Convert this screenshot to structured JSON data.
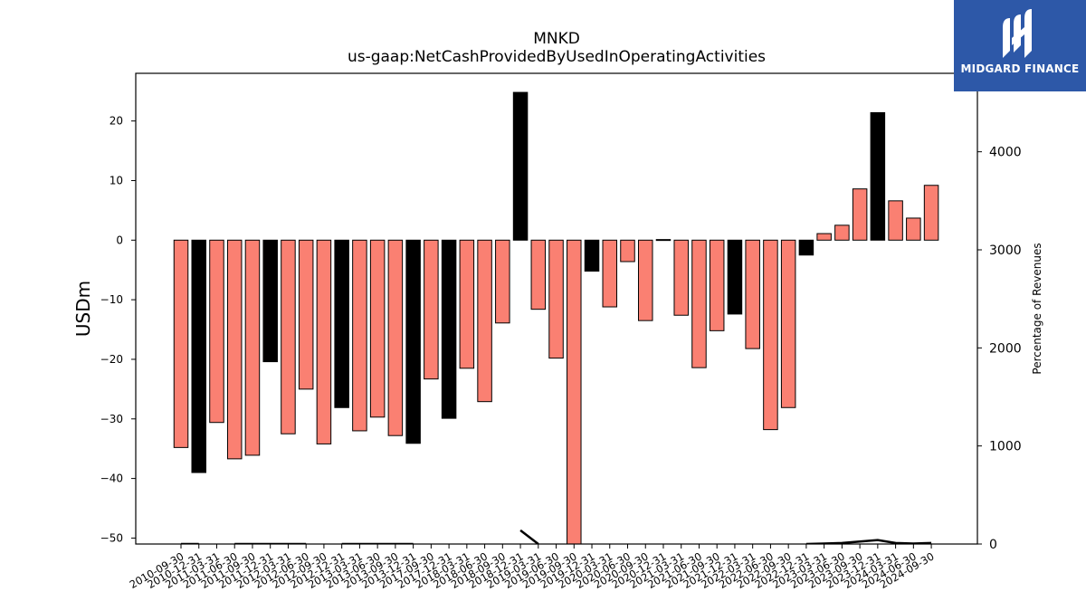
{
  "chart_data": {
    "type": "bar",
    "title": "MNKD",
    "subtitle": "us-gaap:NetCashProvidedByUsedInOperatingActivities",
    "ylabel": "USDm",
    "ylabel_right": "Percentage of Revenues",
    "ylim": [
      -51,
      28
    ],
    "ylim_right": [
      0,
      4800
    ],
    "yticks": [
      -50,
      -40,
      -30,
      -20,
      -10,
      0,
      10,
      20
    ],
    "yticks_right": [
      0,
      1000,
      2000,
      3000,
      4000
    ],
    "categories": [
      "2010-09-30",
      "2010-12-31",
      "2011-03-31",
      "2011-06-30",
      "2011-09-30",
      "2011-12-31",
      "2012-03-31",
      "2012-06-30",
      "2012-09-30",
      "2012-12-31",
      "2013-03-31",
      "2013-06-30",
      "2013-09-30",
      "2013-12-31",
      "2017-09-30",
      "2017-12-31",
      "2018-03-31",
      "2018-06-30",
      "2018-09-30",
      "2018-12-31",
      "2019-03-31",
      "2019-06-30",
      "2019-09-30",
      "2019-12-31",
      "2020-03-31",
      "2020-06-30",
      "2020-09-30",
      "2020-12-31",
      "2021-03-31",
      "2021-06-30",
      "2021-09-30",
      "2021-12-31",
      "2022-03-31",
      "2022-06-30",
      "2022-09-30",
      "2022-12-31",
      "2023-03-31",
      "2023-06-30",
      "2023-09-30",
      "2023-12-31",
      "2024-03-31",
      "2024-06-30",
      "2024-09-30"
    ],
    "values": [
      -34.8,
      -39,
      -30.6,
      -36.7,
      -36.1,
      -20.4,
      -32.5,
      -25,
      -34.2,
      -28.1,
      -32,
      -29.7,
      -32.8,
      -34.1,
      -23.3,
      -29.9,
      -21.5,
      -27.1,
      -13.9,
      24.8,
      -11.6,
      -19.8,
      -55,
      -5.2,
      -11.2,
      -3.6,
      -13.5,
      0.1,
      -12.6,
      -21.4,
      -15.2,
      -12.4,
      -18.2,
      -31.8,
      -28.1,
      -2.5,
      1.1,
      2.5,
      8.6,
      21.4,
      6.6,
      3.7,
      9.2
    ],
    "bar_colors": [
      "salmon",
      "black",
      "salmon",
      "salmon",
      "salmon",
      "black",
      "salmon",
      "salmon",
      "salmon",
      "black",
      "salmon",
      "salmon",
      "salmon",
      "black",
      "salmon",
      "black",
      "salmon",
      "salmon",
      "salmon",
      "black",
      "salmon",
      "salmon",
      "salmon",
      "black",
      "salmon",
      "salmon",
      "salmon",
      "black",
      "salmon",
      "salmon",
      "salmon",
      "black",
      "salmon",
      "salmon",
      "salmon",
      "black",
      "salmon",
      "salmon",
      "salmon",
      "black",
      "salmon",
      "salmon",
      "salmon"
    ],
    "pct_revenue_line": [
      0,
      0,
      null,
      0,
      0,
      0,
      0,
      0,
      null,
      0,
      0,
      0,
      0,
      0,
      null,
      null,
      null,
      null,
      null,
      140,
      0,
      null,
      null,
      null,
      null,
      null,
      null,
      0,
      null,
      null,
      null,
      null,
      null,
      null,
      null,
      0,
      5,
      10,
      25,
      40,
      10,
      5,
      10
    ],
    "colors": {
      "salmon": "#fa8072",
      "black": "#000000",
      "edge": "#000000"
    },
    "grid": false
  },
  "logo": {
    "text": "MIDGARD FINANCE"
  }
}
